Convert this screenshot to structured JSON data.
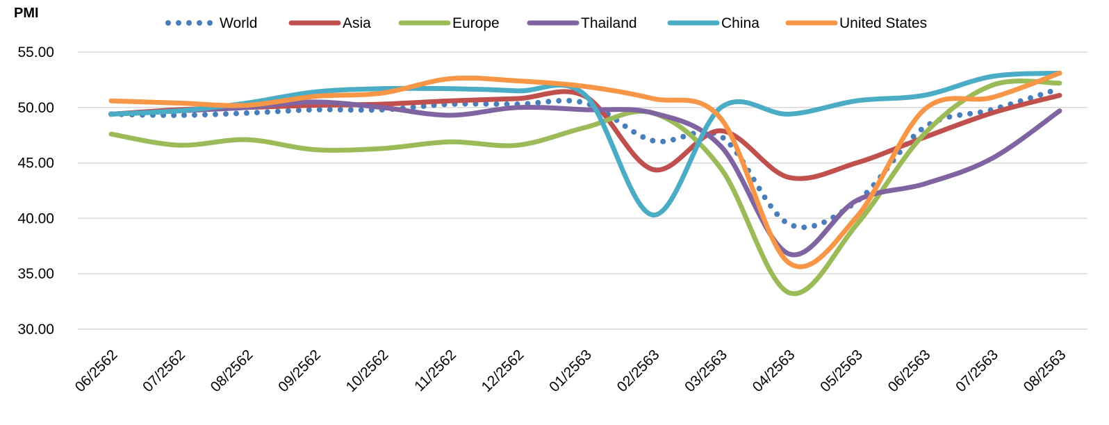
{
  "chart_data": {
    "type": "line",
    "y_label": "PMI",
    "categories": [
      "06/2562",
      "07/2562",
      "08/2562",
      "09/2562",
      "10/2562",
      "11/2562",
      "12/2562",
      "01/2563",
      "02/2563",
      "03/2563",
      "04/2563",
      "05/2563",
      "06/2563",
      "07/2563",
      "08/2563"
    ],
    "series": [
      {
        "name": "World",
        "color": "#4a7ebb",
        "style": "dotted",
        "values": [
          49.4,
          49.3,
          49.5,
          49.8,
          49.8,
          50.3,
          50.3,
          50.4,
          47.0,
          47.4,
          39.5,
          41.5,
          48.2,
          49.8,
          51.7
        ]
      },
      {
        "name": "Asia",
        "color": "#c0504d",
        "values": [
          49.4,
          49.8,
          50.0,
          50.2,
          50.3,
          50.6,
          50.8,
          51.0,
          44.4,
          47.9,
          43.7,
          45.0,
          47.3,
          49.5,
          51.1
        ]
      },
      {
        "name": "Europe",
        "color": "#9bbb59",
        "values": [
          47.6,
          46.6,
          47.1,
          46.2,
          46.3,
          46.9,
          46.6,
          48.2,
          49.5,
          44.5,
          33.3,
          39.4,
          47.6,
          52.0,
          52.2
        ]
      },
      {
        "name": "Thailand",
        "color": "#8064a2",
        "values": [
          49.4,
          49.7,
          50.0,
          50.5,
          50.0,
          49.3,
          50.0,
          49.8,
          49.5,
          46.5,
          36.8,
          41.6,
          43.1,
          45.4,
          49.7
        ]
      },
      {
        "name": "China",
        "color": "#4bacc6",
        "values": [
          49.4,
          49.7,
          50.4,
          51.4,
          51.7,
          51.7,
          51.5,
          51.1,
          40.3,
          50.0,
          49.4,
          50.6,
          51.1,
          52.8,
          53.1
        ]
      },
      {
        "name": "United States",
        "color": "#f79646",
        "values": [
          50.6,
          50.4,
          50.2,
          51.0,
          51.3,
          52.6,
          52.4,
          51.9,
          50.8,
          49.0,
          36.0,
          40.1,
          49.8,
          50.9,
          53.1
        ]
      }
    ],
    "ylim": [
      30,
      55
    ],
    "yticks": [
      {
        "value": 30,
        "label": "30.00"
      },
      {
        "value": 35,
        "label": "35.00"
      },
      {
        "value": 40,
        "label": "40.00"
      },
      {
        "value": 45,
        "label": "45.00"
      },
      {
        "value": 50,
        "label": "50.00"
      },
      {
        "value": 55,
        "label": "55.00"
      }
    ],
    "grid": true,
    "legend": "top"
  }
}
